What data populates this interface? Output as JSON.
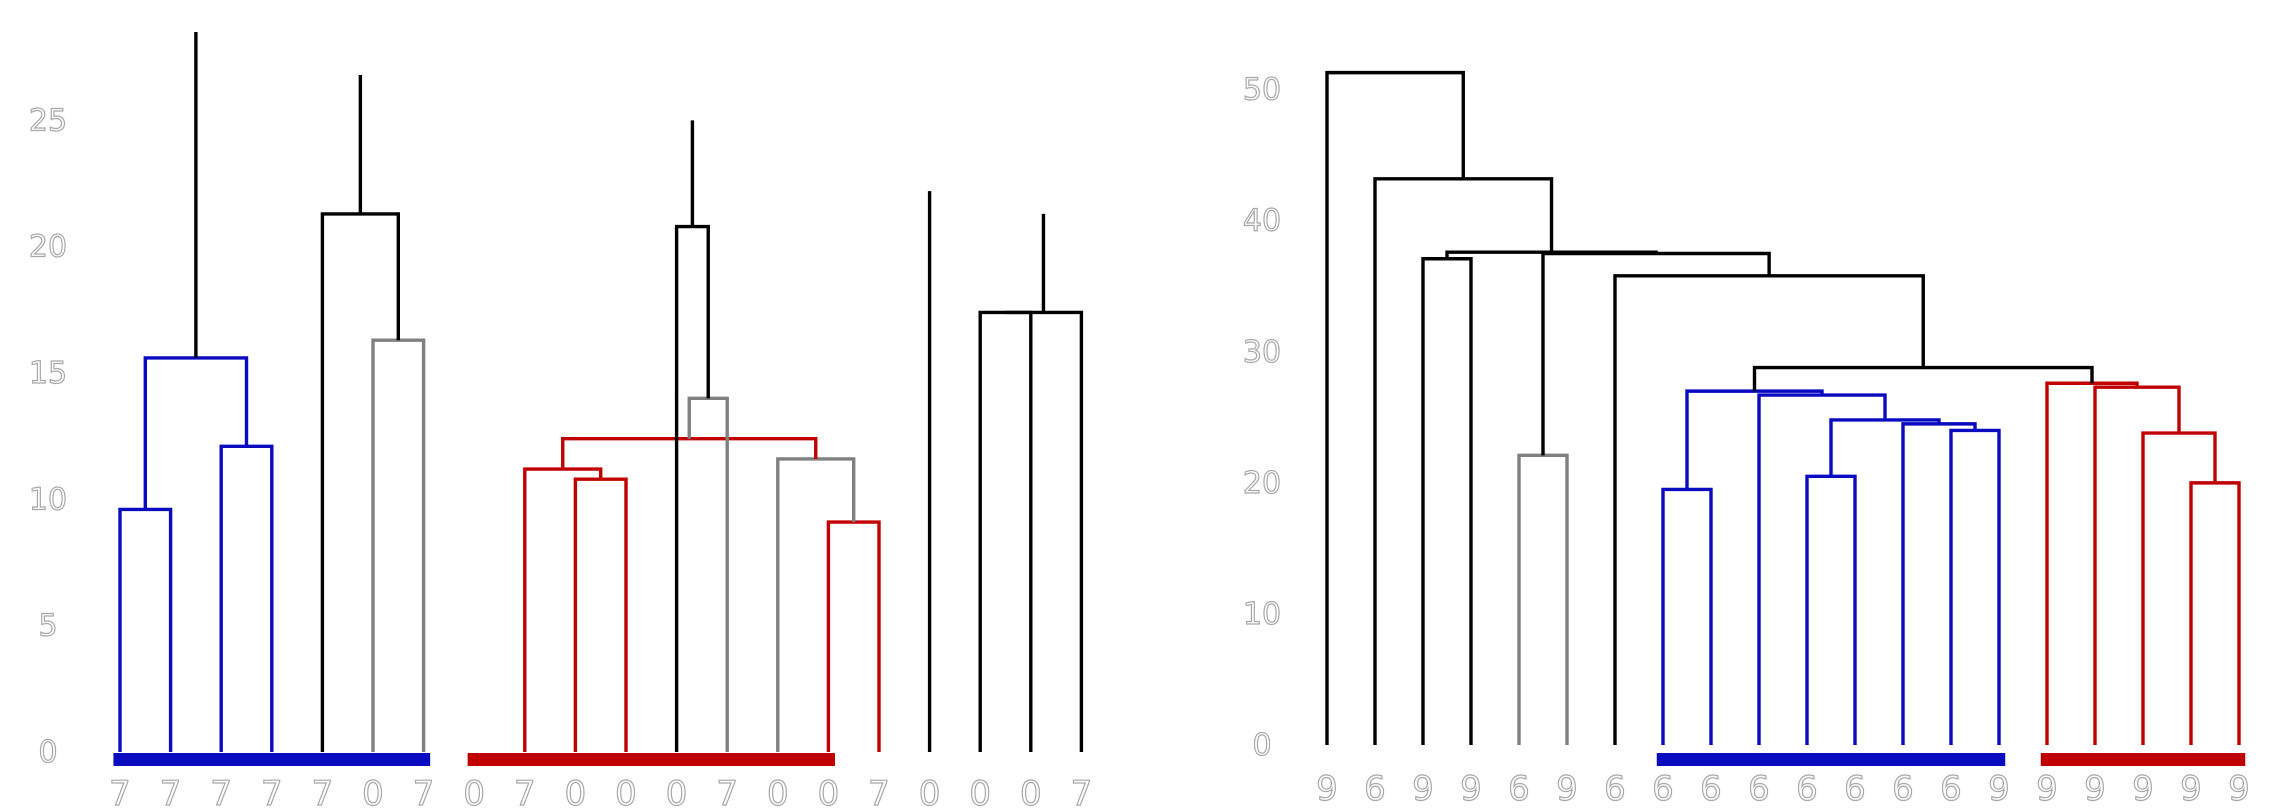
{
  "chart_data": [
    {
      "type": "dendrogram",
      "ylim": [
        0,
        28.5
      ],
      "yticks": [
        0,
        5,
        10,
        15,
        20,
        25
      ],
      "grid": false,
      "leaves": [
        "7",
        "7",
        "7",
        "7",
        "7",
        "0",
        "7",
        "0",
        "7",
        "0",
        "0",
        "0",
        "7",
        "0",
        "0",
        "7",
        "0",
        "0",
        "0",
        "7"
      ],
      "links": [
        {
          "a": 0,
          "b": 1,
          "h": 9.6,
          "color": "#0a0ac0"
        },
        {
          "a": 2,
          "b": 3,
          "h": 12.1,
          "color": "#0a0ac0"
        },
        {
          "a": 20,
          "b": 21,
          "h": 15.6,
          "color": "#0a0ac0"
        },
        {
          "a": 5,
          "b": 6,
          "h": 16.3,
          "color": "#808080"
        },
        {
          "a": 4,
          "b": 23,
          "h": 21.3,
          "color": "#000000"
        },
        {
          "a": 9,
          "b": 10,
          "h": 10.8,
          "color": "#c00000"
        },
        {
          "a": 8,
          "b": 25,
          "h": 11.2,
          "color": "#c00000"
        },
        {
          "a": 14,
          "b": 15,
          "h": 9.1,
          "color": "#c00000"
        },
        {
          "a": 13,
          "b": 27,
          "h": 11.6,
          "color": "#808080"
        },
        {
          "a": 26,
          "b": 28,
          "h": 12.4,
          "color": "#c00000"
        },
        {
          "a": 12,
          "b": 29,
          "h": 14.0,
          "color": "#808080"
        },
        {
          "a": 11,
          "b": 30,
          "h": 20.8,
          "color": "#000000"
        },
        {
          "a": 17,
          "b": 18,
          "h": 17.4,
          "color": "#000000"
        },
        {
          "a": 19,
          "b": 32,
          "h": 17.4,
          "color": "#000000"
        },
        {
          "a": 33,
          "b": 34,
          "h": 21.3,
          "color": "#000000"
        },
        {
          "a": 16,
          "b": 35,
          "h": 22.2,
          "color": "#000000"
        },
        {
          "a": 31,
          "b": 36,
          "h": 25.0,
          "color": "#000000"
        },
        {
          "a": 24,
          "b": 37,
          "h": 26.8,
          "color": "#000000"
        },
        {
          "a": 22,
          "b": 38,
          "h": 28.5,
          "color": "#000000"
        }
      ],
      "cluster_bars": [
        {
          "from": 0,
          "to": 6,
          "color": "#0a0ac0"
        },
        {
          "from": 7,
          "to": 14,
          "color": "#c00000"
        }
      ]
    },
    {
      "type": "dendrogram",
      "ylim": [
        0,
        51.5
      ],
      "yticks": [
        0,
        10,
        20,
        30,
        40,
        50
      ],
      "grid": false,
      "leaves": [
        "9",
        "6",
        "9",
        "9",
        "6",
        "9",
        "6",
        "6",
        "6",
        "6",
        "6",
        "6",
        "6",
        "6",
        "9",
        "9",
        "9",
        "9",
        "9",
        "9"
      ],
      "links": [
        {
          "a": 7,
          "b": 8,
          "h": 19.5,
          "color": "#0a0ac0"
        },
        {
          "a": 10,
          "b": 11,
          "h": 20.5,
          "color": "#0a0ac0"
        },
        {
          "a": 13,
          "b": 14,
          "h": 24.0,
          "color": "#0a0ac0"
        },
        {
          "a": 12,
          "b": 22,
          "h": 24.5,
          "color": "#0a0ac0"
        },
        {
          "a": 21,
          "b": 23,
          "h": 24.8,
          "color": "#0a0ac0"
        },
        {
          "a": 9,
          "b": 24,
          "h": 26.7,
          "color": "#0a0ac0"
        },
        {
          "a": 20,
          "b": 25,
          "h": 27.0,
          "color": "#0a0ac0"
        },
        {
          "a": 18,
          "b": 19,
          "h": 20.0,
          "color": "#c00000"
        },
        {
          "a": 17,
          "b": 27,
          "h": 23.8,
          "color": "#c00000"
        },
        {
          "a": 16,
          "b": 28,
          "h": 27.3,
          "color": "#c00000"
        },
        {
          "a": 15,
          "b": 29,
          "h": 27.6,
          "color": "#c00000"
        },
        {
          "a": 26,
          "b": 30,
          "h": 28.8,
          "color": "#000000"
        },
        {
          "a": 6,
          "b": 31,
          "h": 35.8,
          "color": "#000000"
        },
        {
          "a": 4,
          "b": 5,
          "h": 22.1,
          "color": "#808080"
        },
        {
          "a": 33,
          "b": 32,
          "h": 37.5,
          "color": "#000000"
        },
        {
          "a": 2,
          "b": 3,
          "h": 37.1,
          "color": "#000000"
        },
        {
          "a": 35,
          "b": 34,
          "h": 37.6,
          "color": "#000000"
        },
        {
          "a": 1,
          "b": 36,
          "h": 43.2,
          "color": "#000000"
        },
        {
          "a": 0,
          "b": 37,
          "h": 51.3,
          "color": "#000000"
        }
      ],
      "cluster_bars": [
        {
          "from": 7,
          "to": 14,
          "color": "#0a0ac0"
        },
        {
          "from": 15,
          "to": 19,
          "color": "#c00000"
        }
      ]
    }
  ]
}
